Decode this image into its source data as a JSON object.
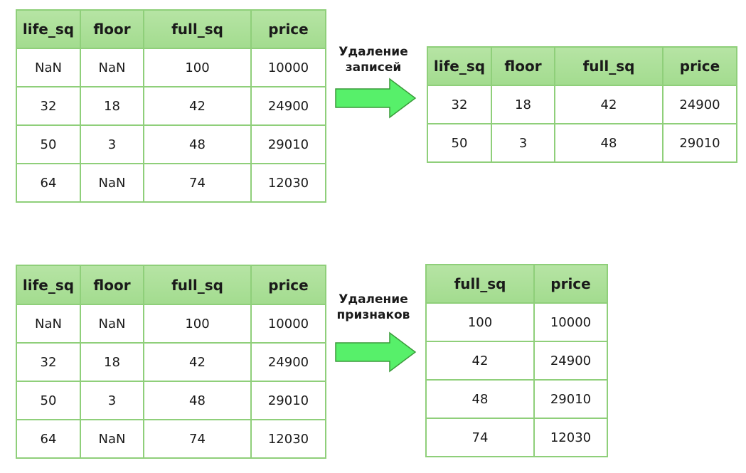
{
  "top": {
    "source_table": {
      "headers": [
        "life_sq",
        "floor",
        "full_sq",
        "price"
      ],
      "rows": [
        [
          "NaN",
          "NaN",
          "100",
          "10000"
        ],
        [
          "32",
          "18",
          "42",
          "24900"
        ],
        [
          "50",
          "3",
          "48",
          "29010"
        ],
        [
          "64",
          "NaN",
          "74",
          "12030"
        ]
      ]
    },
    "arrow_label_line1": "Удаление",
    "arrow_label_line2": "записей",
    "result_table": {
      "headers": [
        "life_sq",
        "floor",
        "full_sq",
        "price"
      ],
      "rows": [
        [
          "32",
          "18",
          "42",
          "24900"
        ],
        [
          "50",
          "3",
          "48",
          "29010"
        ]
      ]
    }
  },
  "bottom": {
    "source_table": {
      "headers": [
        "life_sq",
        "floor",
        "full_sq",
        "price"
      ],
      "rows": [
        [
          "NaN",
          "NaN",
          "100",
          "10000"
        ],
        [
          "32",
          "18",
          "42",
          "24900"
        ],
        [
          "50",
          "3",
          "48",
          "29010"
        ],
        [
          "64",
          "NaN",
          "74",
          "12030"
        ]
      ]
    },
    "arrow_label_line1": "Удаление",
    "arrow_label_line2": "признаков",
    "result_table": {
      "headers": [
        "full_sq",
        "price"
      ],
      "rows": [
        [
          "100",
          "10000"
        ],
        [
          "42",
          "24900"
        ],
        [
          "48",
          "29010"
        ],
        [
          "74",
          "12030"
        ]
      ]
    }
  },
  "colors": {
    "border": "#8fcf7a",
    "header_fill": "#a3dc8f",
    "arrow_fill": "#57f06a",
    "arrow_stroke": "#3a9a3a"
  }
}
